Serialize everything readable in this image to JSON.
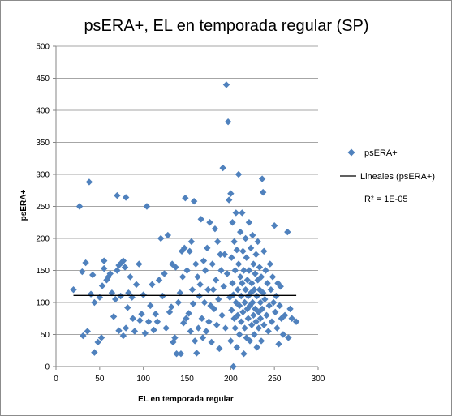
{
  "colors": {
    "marker": "#4F81BD",
    "trendline": "#000000",
    "grid": "#a6a6a6",
    "axis": "#868686"
  },
  "chart_data": {
    "type": "scatter",
    "title": "psERA+, EL en temporada regular (SP)",
    "xlabel": "EL en temporada regular",
    "ylabel": "psERA+",
    "xlim": [
      0,
      300
    ],
    "ylim": [
      0,
      500
    ],
    "xticks": [
      0,
      50,
      100,
      150,
      200,
      250,
      300
    ],
    "yticks": [
      0,
      50,
      100,
      150,
      200,
      250,
      300,
      350,
      400,
      450,
      500
    ],
    "grid": "horizontal major gridlines",
    "legend_position": "right",
    "series": [
      {
        "name": "psERA+",
        "marker": "diamond",
        "points": [
          [
            20,
            120
          ],
          [
            27,
            250
          ],
          [
            30,
            148
          ],
          [
            31,
            48
          ],
          [
            34,
            162
          ],
          [
            36,
            55
          ],
          [
            38,
            288
          ],
          [
            40,
            113
          ],
          [
            42,
            143
          ],
          [
            44,
            100
          ],
          [
            44,
            22
          ],
          [
            48,
            38
          ],
          [
            50,
            108
          ],
          [
            52,
            45
          ],
          [
            53,
            126
          ],
          [
            55,
            165
          ],
          [
            55,
            153
          ],
          [
            58,
            135
          ],
          [
            60,
            140
          ],
          [
            62,
            145
          ],
          [
            64,
            115
          ],
          [
            66,
            78
          ],
          [
            68,
            105
          ],
          [
            70,
            267
          ],
          [
            70,
            150
          ],
          [
            72,
            56
          ],
          [
            72,
            158
          ],
          [
            74,
            110
          ],
          [
            75,
            162
          ],
          [
            77,
            165
          ],
          [
            77,
            48
          ],
          [
            79,
            155
          ],
          [
            80,
            264
          ],
          [
            80,
            60
          ],
          [
            82,
            92
          ],
          [
            83,
            115
          ],
          [
            85,
            140
          ],
          [
            87,
            108
          ],
          [
            88,
            75
          ],
          [
            90,
            55
          ],
          [
            92,
            128
          ],
          [
            95,
            160
          ],
          [
            96,
            72
          ],
          [
            98,
            82
          ],
          [
            100,
            112
          ],
          [
            102,
            52
          ],
          [
            104,
            250
          ],
          [
            106,
            70
          ],
          [
            108,
            95
          ],
          [
            110,
            128
          ],
          [
            112,
            57
          ],
          [
            114,
            82
          ],
          [
            116,
            70
          ],
          [
            118,
            135
          ],
          [
            120,
            200
          ],
          [
            122,
            110
          ],
          [
            124,
            145
          ],
          [
            126,
            60
          ],
          [
            128,
            205
          ],
          [
            130,
            85
          ],
          [
            132,
            93
          ],
          [
            133,
            160
          ],
          [
            134,
            38
          ],
          [
            136,
            45
          ],
          [
            137,
            155
          ],
          [
            138,
            20
          ],
          [
            140,
            100
          ],
          [
            142,
            115
          ],
          [
            143,
            20
          ],
          [
            144,
            180
          ],
          [
            145,
            140
          ],
          [
            146,
            68
          ],
          [
            147,
            185
          ],
          [
            148,
            263
          ],
          [
            149,
            75
          ],
          [
            150,
            150
          ],
          [
            152,
            83
          ],
          [
            153,
            180
          ],
          [
            154,
            55
          ],
          [
            155,
            195
          ],
          [
            156,
            120
          ],
          [
            157,
            98
          ],
          [
            158,
            258
          ],
          [
            159,
            40
          ],
          [
            160,
            160
          ],
          [
            161,
            21
          ],
          [
            162,
            140
          ],
          [
            163,
            60
          ],
          [
            164,
            110
          ],
          [
            165,
            128
          ],
          [
            166,
            230
          ],
          [
            167,
            75
          ],
          [
            168,
            45
          ],
          [
            169,
            165
          ],
          [
            170,
            100
          ],
          [
            171,
            150
          ],
          [
            172,
            55
          ],
          [
            173,
            185
          ],
          [
            174,
            120
          ],
          [
            175,
            70
          ],
          [
            176,
            225
          ],
          [
            177,
            95
          ],
          [
            178,
            38
          ],
          [
            179,
            160
          ],
          [
            180,
            120
          ],
          [
            181,
            90
          ],
          [
            182,
            215
          ],
          [
            183,
            135
          ],
          [
            184,
            65
          ],
          [
            185,
            195
          ],
          [
            186,
            105
          ],
          [
            187,
            28
          ],
          [
            188,
            175
          ],
          [
            189,
            150
          ],
          [
            190,
            80
          ],
          [
            191,
            310
          ],
          [
            192,
            125
          ],
          [
            193,
            175
          ],
          [
            194,
            60
          ],
          [
            195,
            440
          ],
          [
            196,
            145
          ],
          [
            197,
            382
          ],
          [
            198,
            260
          ],
          [
            199,
            108
          ],
          [
            200,
            270
          ],
          [
            200,
            40
          ],
          [
            201,
            170
          ],
          [
            201,
            88
          ],
          [
            202,
            225
          ],
          [
            202,
            130
          ],
          [
            203,
            0
          ],
          [
            203,
            112
          ],
          [
            204,
            75
          ],
          [
            204,
            195
          ],
          [
            205,
            150
          ],
          [
            205,
            60
          ],
          [
            206,
            100
          ],
          [
            206,
            240
          ],
          [
            207,
            182
          ],
          [
            207,
            30
          ],
          [
            208,
            120
          ],
          [
            208,
            80
          ],
          [
            209,
            300
          ],
          [
            209,
            160
          ],
          [
            210,
            95
          ],
          [
            210,
            50
          ],
          [
            211,
            140
          ],
          [
            211,
            210
          ],
          [
            212,
            110
          ],
          [
            212,
            70
          ],
          [
            213,
            240
          ],
          [
            213,
            130
          ],
          [
            214,
            85
          ],
          [
            214,
            180
          ],
          [
            215,
            150
          ],
          [
            215,
            20
          ],
          [
            216,
            100
          ],
          [
            216,
            60
          ],
          [
            217,
            200
          ],
          [
            217,
            120
          ],
          [
            218,
            45
          ],
          [
            218,
            170
          ],
          [
            219,
            90
          ],
          [
            219,
            135
          ],
          [
            220,
            110
          ],
          [
            220,
            75
          ],
          [
            221,
            225
          ],
          [
            221,
            150
          ],
          [
            222,
            95
          ],
          [
            222,
            40
          ],
          [
            223,
            185
          ],
          [
            223,
            115
          ],
          [
            224,
            65
          ],
          [
            224,
            130
          ],
          [
            225,
            100
          ],
          [
            225,
            205
          ],
          [
            226,
            80
          ],
          [
            226,
            160
          ],
          [
            227,
            120
          ],
          [
            227,
            50
          ],
          [
            228,
            145
          ],
          [
            228,
            90
          ],
          [
            229,
            175
          ],
          [
            229,
            70
          ],
          [
            230,
            110
          ],
          [
            230,
            30
          ],
          [
            231,
            135
          ],
          [
            231,
            195
          ],
          [
            232,
            85
          ],
          [
            232,
            60
          ],
          [
            233,
            120
          ],
          [
            233,
            155
          ],
          [
            234,
            100
          ],
          [
            234,
            75
          ],
          [
            235,
            40
          ],
          [
            235,
            140
          ],
          [
            236,
            293
          ],
          [
            236,
            90
          ],
          [
            237,
            115
          ],
          [
            237,
            272
          ],
          [
            238,
            180
          ],
          [
            238,
            65
          ],
          [
            239,
            105
          ],
          [
            240,
            150
          ],
          [
            241,
            80
          ],
          [
            242,
            130
          ],
          [
            243,
            55
          ],
          [
            244,
            95
          ],
          [
            245,
            160
          ],
          [
            246,
            120
          ],
          [
            247,
            70
          ],
          [
            248,
            140
          ],
          [
            249,
            100
          ],
          [
            250,
            220
          ],
          [
            251,
            85
          ],
          [
            252,
            110
          ],
          [
            253,
            60
          ],
          [
            254,
            130
          ],
          [
            255,
            35
          ],
          [
            256,
            95
          ],
          [
            257,
            125
          ],
          [
            258,
            75
          ],
          [
            260,
            50
          ],
          [
            262,
            80
          ],
          [
            265,
            210
          ],
          [
            266,
            45
          ],
          [
            268,
            90
          ],
          [
            270,
            75
          ],
          [
            275,
            70
          ]
        ]
      }
    ],
    "trendline": {
      "name": "Lineales (psERA+)",
      "x": [
        20,
        275
      ],
      "y": [
        111,
        111
      ],
      "r_squared_label": "R² = 1E-05"
    }
  }
}
